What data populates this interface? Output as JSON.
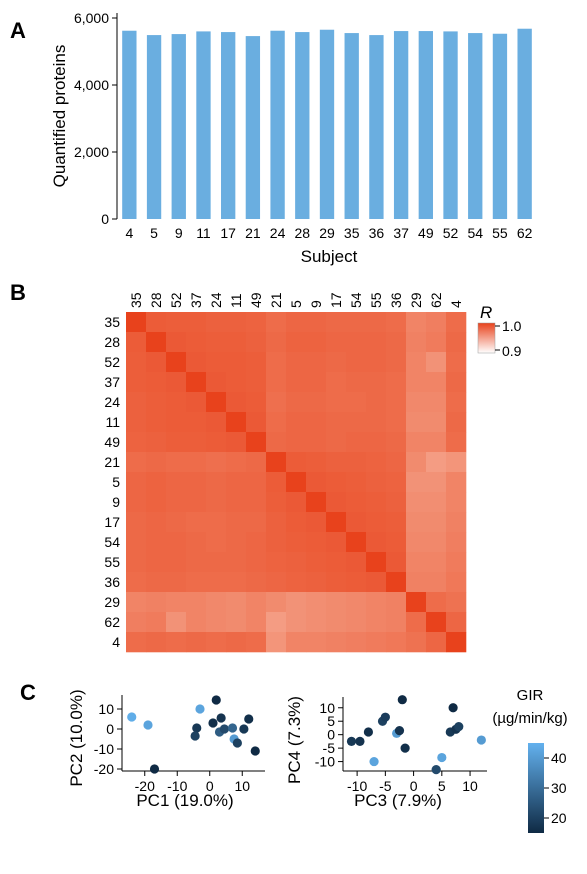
{
  "panels": {
    "a": "A",
    "b": "B",
    "c": "C"
  },
  "colors": {
    "bar": "#6aaee0",
    "heat_low": "#ffffff",
    "heat_high": "#e8421c",
    "gir_low": "#0f2a44",
    "gir_high": "#63b1ee"
  },
  "chart_data": [
    {
      "type": "bar",
      "xlabel": "Subject",
      "ylabel": "Quantified proteins",
      "categories": [
        "4",
        "5",
        "9",
        "11",
        "17",
        "21",
        "24",
        "28",
        "29",
        "35",
        "36",
        "37",
        "49",
        "52",
        "54",
        "55",
        "62"
      ],
      "values": [
        5620,
        5490,
        5520,
        5600,
        5580,
        5460,
        5620,
        5580,
        5650,
        5550,
        5490,
        5610,
        5610,
        5600,
        5550,
        5530,
        5680
      ],
      "ylim": [
        0,
        6000
      ],
      "yticks": [
        "0",
        "2,000",
        "4,000",
        "6,000"
      ]
    },
    {
      "type": "heatmap",
      "labels": [
        "35",
        "28",
        "52",
        "37",
        "24",
        "11",
        "49",
        "21",
        "5",
        "9",
        "17",
        "54",
        "55",
        "36",
        "29",
        "62",
        "4"
      ],
      "legend_title": "R",
      "legend_ticks": [
        "1.0",
        "0.9"
      ],
      "zlim": [
        0.9,
        1.0
      ],
      "diagonal": 1.0,
      "matrix": [
        [
          1.0,
          0.976,
          0.975,
          0.975,
          0.974,
          0.974,
          0.973,
          0.97,
          0.972,
          0.972,
          0.971,
          0.971,
          0.971,
          0.97,
          0.962,
          0.964,
          0.97
        ],
        [
          0.976,
          1.0,
          0.977,
          0.976,
          0.975,
          0.975,
          0.974,
          0.971,
          0.973,
          0.973,
          0.972,
          0.972,
          0.972,
          0.971,
          0.963,
          0.965,
          0.971
        ],
        [
          0.975,
          0.977,
          1.0,
          0.977,
          0.976,
          0.976,
          0.975,
          0.97,
          0.972,
          0.972,
          0.971,
          0.972,
          0.972,
          0.971,
          0.962,
          0.958,
          0.97
        ],
        [
          0.975,
          0.976,
          0.977,
          1.0,
          0.977,
          0.976,
          0.975,
          0.97,
          0.972,
          0.972,
          0.97,
          0.971,
          0.971,
          0.97,
          0.962,
          0.962,
          0.971
        ],
        [
          0.974,
          0.975,
          0.976,
          0.977,
          1.0,
          0.977,
          0.976,
          0.969,
          0.971,
          0.971,
          0.97,
          0.97,
          0.971,
          0.97,
          0.961,
          0.961,
          0.97
        ],
        [
          0.974,
          0.975,
          0.976,
          0.976,
          0.977,
          1.0,
          0.977,
          0.97,
          0.972,
          0.972,
          0.971,
          0.971,
          0.971,
          0.97,
          0.96,
          0.96,
          0.971
        ],
        [
          0.973,
          0.974,
          0.975,
          0.975,
          0.976,
          0.977,
          1.0,
          0.971,
          0.972,
          0.972,
          0.971,
          0.972,
          0.972,
          0.971,
          0.962,
          0.962,
          0.97
        ],
        [
          0.97,
          0.971,
          0.97,
          0.97,
          0.969,
          0.97,
          0.971,
          1.0,
          0.976,
          0.975,
          0.974,
          0.974,
          0.973,
          0.972,
          0.96,
          0.955,
          0.957
        ],
        [
          0.972,
          0.973,
          0.972,
          0.972,
          0.971,
          0.972,
          0.972,
          0.976,
          1.0,
          0.977,
          0.976,
          0.975,
          0.974,
          0.973,
          0.958,
          0.958,
          0.962
        ],
        [
          0.972,
          0.973,
          0.972,
          0.972,
          0.971,
          0.972,
          0.972,
          0.975,
          0.977,
          1.0,
          0.977,
          0.976,
          0.975,
          0.974,
          0.959,
          0.959,
          0.962
        ],
        [
          0.971,
          0.972,
          0.971,
          0.97,
          0.97,
          0.971,
          0.971,
          0.974,
          0.976,
          0.977,
          1.0,
          0.977,
          0.976,
          0.975,
          0.96,
          0.96,
          0.963
        ],
        [
          0.971,
          0.972,
          0.972,
          0.971,
          0.97,
          0.971,
          0.972,
          0.974,
          0.975,
          0.976,
          0.977,
          1.0,
          0.977,
          0.976,
          0.961,
          0.961,
          0.964
        ],
        [
          0.971,
          0.972,
          0.972,
          0.971,
          0.971,
          0.971,
          0.972,
          0.973,
          0.974,
          0.975,
          0.976,
          0.977,
          1.0,
          0.977,
          0.962,
          0.962,
          0.965
        ],
        [
          0.97,
          0.971,
          0.971,
          0.97,
          0.97,
          0.97,
          0.971,
          0.972,
          0.973,
          0.974,
          0.975,
          0.976,
          0.977,
          1.0,
          0.963,
          0.963,
          0.966
        ],
        [
          0.962,
          0.963,
          0.962,
          0.962,
          0.961,
          0.96,
          0.962,
          0.96,
          0.958,
          0.959,
          0.96,
          0.961,
          0.962,
          0.963,
          1.0,
          0.97,
          0.968
        ],
        [
          0.964,
          0.965,
          0.958,
          0.962,
          0.961,
          0.96,
          0.962,
          0.955,
          0.958,
          0.959,
          0.96,
          0.961,
          0.962,
          0.963,
          0.97,
          1.0,
          0.972
        ],
        [
          0.97,
          0.971,
          0.97,
          0.971,
          0.97,
          0.971,
          0.97,
          0.957,
          0.962,
          0.962,
          0.963,
          0.964,
          0.965,
          0.966,
          0.968,
          0.972,
          1.0
        ]
      ]
    },
    {
      "type": "scatter",
      "xlabel": "PC1 (19.0%)",
      "ylabel": "PC2 (10.0%)",
      "xlim": [
        -27,
        17
      ],
      "ylim": [
        -21,
        17
      ],
      "xticks": [
        -20,
        -10,
        0,
        10
      ],
      "yticks": [
        -20,
        -10,
        0,
        10
      ],
      "points": [
        {
          "x": -24,
          "y": 6,
          "gir": 44
        },
        {
          "x": -19,
          "y": 2,
          "gir": 42
        },
        {
          "x": -17,
          "y": -20,
          "gir": 14
        },
        {
          "x": -3,
          "y": 10,
          "gir": 42
        },
        {
          "x": 2,
          "y": 14.5,
          "gir": 15
        },
        {
          "x": -4,
          "y": 0.5,
          "gir": 18
        },
        {
          "x": -4.5,
          "y": -3.5,
          "gir": 20
        },
        {
          "x": 1,
          "y": 3,
          "gir": 16
        },
        {
          "x": 3,
          "y": -1.5,
          "gir": 26
        },
        {
          "x": 3.5,
          "y": 5.5,
          "gir": 17
        },
        {
          "x": 4.5,
          "y": 0,
          "gir": 22
        },
        {
          "x": 7,
          "y": 0.5,
          "gir": 28
        },
        {
          "x": 7.5,
          "y": -5,
          "gir": 40
        },
        {
          "x": 8.5,
          "y": -7,
          "gir": 20
        },
        {
          "x": 10.5,
          "y": 0,
          "gir": 18
        },
        {
          "x": 12,
          "y": 5,
          "gir": 16
        },
        {
          "x": 14,
          "y": -11,
          "gir": 15
        }
      ]
    },
    {
      "type": "scatter",
      "xlabel": "PC3 (7.9%)",
      "ylabel": "PC4 (7.3%)",
      "xlim": [
        -12.5,
        13
      ],
      "ylim": [
        -13.5,
        14
      ],
      "xticks": [
        -10,
        -5,
        0,
        5,
        10
      ],
      "xtick_labels": [
        "-10",
        "-5",
        "0",
        "5",
        "10"
      ],
      "yticks": [
        -10,
        -5,
        0,
        5,
        10
      ],
      "points": [
        {
          "x": -11,
          "y": -2.5,
          "gir": 18
        },
        {
          "x": -9.5,
          "y": -2.5,
          "gir": 17
        },
        {
          "x": -8,
          "y": 1,
          "gir": 16
        },
        {
          "x": -7,
          "y": -10,
          "gir": 42
        },
        {
          "x": -5.5,
          "y": 5,
          "gir": 20
        },
        {
          "x": -5,
          "y": 6.5,
          "gir": 19
        },
        {
          "x": -3,
          "y": 0.5,
          "gir": 40
        },
        {
          "x": -2.5,
          "y": 1.5,
          "gir": 17
        },
        {
          "x": -2,
          "y": 13,
          "gir": 15
        },
        {
          "x": -1.5,
          "y": -5,
          "gir": 16
        },
        {
          "x": 4,
          "y": -13,
          "gir": 22
        },
        {
          "x": 5,
          "y": -8.5,
          "gir": 42
        },
        {
          "x": 6.5,
          "y": 1,
          "gir": 18
        },
        {
          "x": 7,
          "y": 10,
          "gir": 15
        },
        {
          "x": 7.5,
          "y": 2,
          "gir": 17
        },
        {
          "x": 8,
          "y": 3,
          "gir": 20
        },
        {
          "x": 12,
          "y": -2,
          "gir": 40
        }
      ]
    }
  ],
  "gir_legend": {
    "title_line1": "GIR",
    "title_line2": "(µg/min/kg)",
    "ticks": [
      20,
      30,
      40
    ],
    "range": [
      15,
      45
    ]
  }
}
